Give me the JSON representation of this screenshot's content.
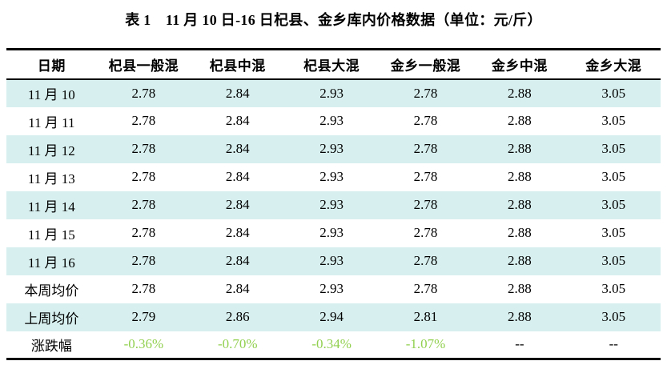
{
  "title": "表 1　11 月 10 日-16 日杞县、金乡库内价格数据（单位：元/斤）",
  "table": {
    "columns": [
      "日期",
      "杞县一般混",
      "杞县中混",
      "杞县大混",
      "金乡一般混",
      "金乡中混",
      "金乡大混"
    ],
    "rows": [
      {
        "label": "11 月 10",
        "values": [
          "2.78",
          "2.84",
          "2.93",
          "2.78",
          "2.88",
          "3.05"
        ]
      },
      {
        "label": "11 月 11",
        "values": [
          "2.78",
          "2.84",
          "2.93",
          "2.78",
          "2.88",
          "3.05"
        ]
      },
      {
        "label": "11 月 12",
        "values": [
          "2.78",
          "2.84",
          "2.93",
          "2.78",
          "2.88",
          "3.05"
        ]
      },
      {
        "label": "11 月 13",
        "values": [
          "2.78",
          "2.84",
          "2.93",
          "2.78",
          "2.88",
          "3.05"
        ]
      },
      {
        "label": "11 月 14",
        "values": [
          "2.78",
          "2.84",
          "2.93",
          "2.78",
          "2.88",
          "3.05"
        ]
      },
      {
        "label": "11 月 15",
        "values": [
          "2.78",
          "2.84",
          "2.93",
          "2.78",
          "2.88",
          "3.05"
        ]
      },
      {
        "label": "11 月 16",
        "values": [
          "2.78",
          "2.84",
          "2.93",
          "2.78",
          "2.88",
          "3.05"
        ]
      },
      {
        "label": "本周均价",
        "values": [
          "2.78",
          "2.84",
          "2.93",
          "2.78",
          "2.88",
          "3.05"
        ]
      },
      {
        "label": "上周均价",
        "values": [
          "2.79",
          "2.86",
          "2.94",
          "2.81",
          "2.88",
          "3.05"
        ]
      },
      {
        "label": "涨跌幅",
        "values": [
          "-0.36%",
          "-0.70%",
          "-0.34%",
          "-1.07%",
          "--",
          "--"
        ]
      }
    ]
  },
  "colors": {
    "stripe_row_background": "#d7f0ef",
    "change_percent_text": "#92d050",
    "border": "#000000",
    "text": "#000000"
  }
}
